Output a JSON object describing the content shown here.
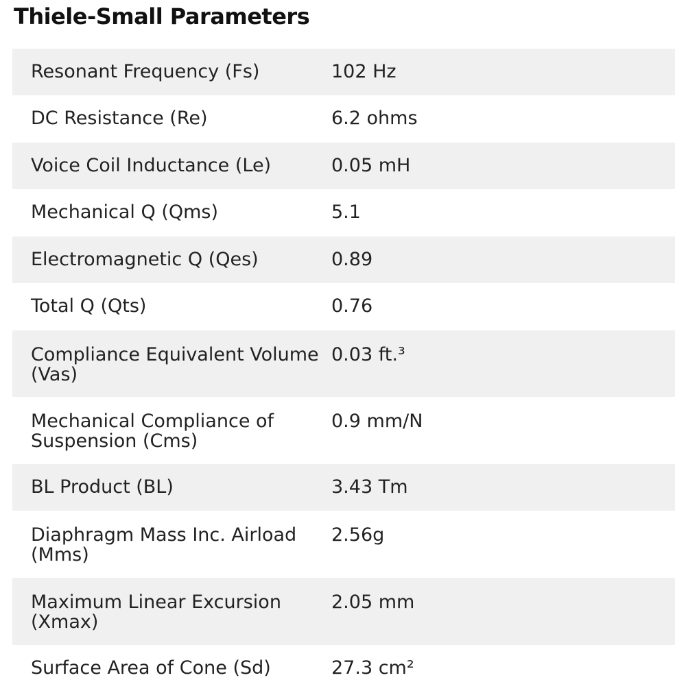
{
  "title": "Thiele-Small Parameters",
  "rows": [
    {
      "label": "Resonant Frequency (Fs)",
      "value": "102 Hz"
    },
    {
      "label": "DC Resistance (Re)",
      "value": "6.2 ohms"
    },
    {
      "label": "Voice Coil Inductance (Le)",
      "value": "0.05 mH"
    },
    {
      "label": "Mechanical Q (Qms)",
      "value": "5.1"
    },
    {
      "label": "Electromagnetic Q (Qes)",
      "value": "0.89"
    },
    {
      "label": "Total Q (Qts)",
      "value": "0.76"
    },
    {
      "label": "Compliance Equivalent Volume (Vas)",
      "value": "0.03 ft.³"
    },
    {
      "label": "Mechanical Compliance of Suspension (Cms)",
      "value": "0.9 mm/N"
    },
    {
      "label": "BL Product (BL)",
      "value": "3.43 Tm"
    },
    {
      "label": "Diaphragm Mass Inc. Airload (Mms)",
      "value": "2.56g"
    },
    {
      "label": "Maximum Linear Excursion (Xmax)",
      "value": "2.05 mm"
    },
    {
      "label": "Surface Area of Cone (Sd)",
      "value": "27.3 cm²"
    }
  ]
}
